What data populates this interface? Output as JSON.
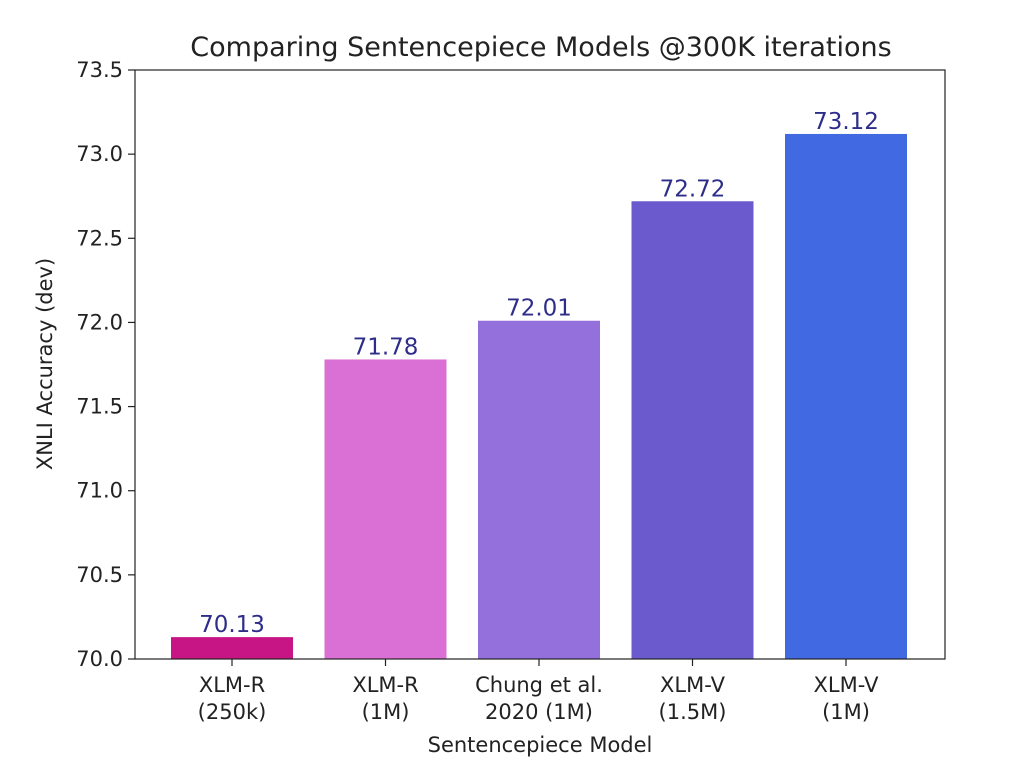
{
  "chart_data": {
    "type": "bar",
    "title": "Comparing Sentencepiece Models @300K iterations",
    "xlabel": "Sentencepiece Model",
    "ylabel": "XNLI Accuracy (dev)",
    "ylim": [
      70.0,
      73.5
    ],
    "yticks": [
      "70.0",
      "70.5",
      "71.0",
      "71.5",
      "72.0",
      "72.5",
      "73.0",
      "73.5"
    ],
    "categories": [
      [
        "XLM-R",
        "(250k)"
      ],
      [
        "XLM-R",
        "(1M)"
      ],
      [
        "Chung et al.",
        "2020 (1M)"
      ],
      [
        "XLM-V",
        "(1.5M)"
      ],
      [
        "XLM-V",
        "(1M)"
      ]
    ],
    "values": [
      70.13,
      71.78,
      72.01,
      72.72,
      73.12
    ],
    "value_labels": [
      "70.13",
      "71.78",
      "72.01",
      "72.72",
      "73.12"
    ],
    "bar_colors": [
      "#c71585",
      "#da70d6",
      "#9370db",
      "#6a5acd",
      "#4169e1"
    ],
    "value_label_color": "#2e2e8a",
    "grid": false,
    "legend": "none"
  }
}
